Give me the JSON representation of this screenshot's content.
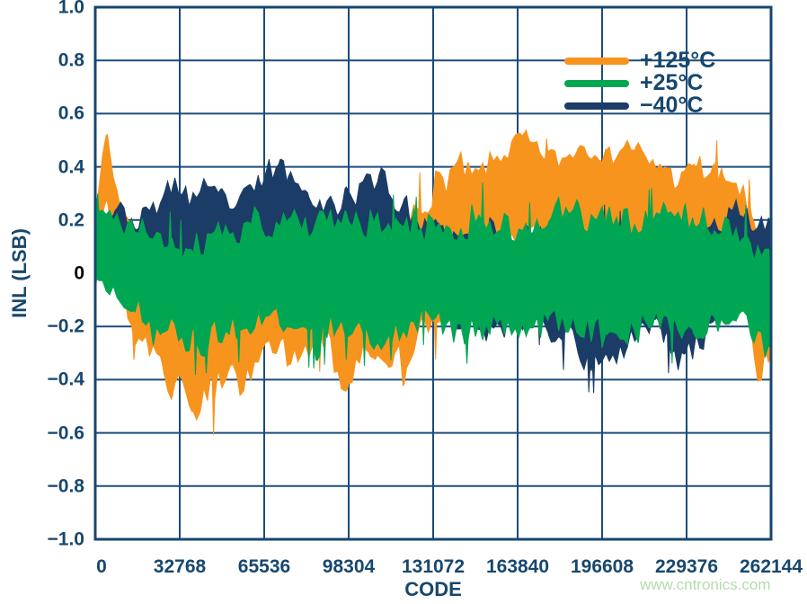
{
  "colors": {
    "text": "#17476E",
    "grid": "#1B4C7C",
    "frame": "#17466F",
    "zero_tick": "#000000",
    "background": "#FFFFFF",
    "watermark": "#B4DBAC"
  },
  "watermark": {
    "text": "www.cntronics.com"
  },
  "chart_data": {
    "type": "line",
    "title": "",
    "xlabel": "CODE",
    "ylabel": "INL (LSB)",
    "xlim": [
      0,
      262144
    ],
    "ylim": [
      -1.0,
      1.0
    ],
    "grid": true,
    "legend_position": "top-right-inside",
    "x_ticks": [
      0,
      32768,
      65536,
      98304,
      131072,
      163840,
      196608,
      229376,
      262144
    ],
    "x_tick_labels": [
      "0",
      "32768",
      "65536",
      "98304",
      "131072",
      "163840",
      "196608",
      "229376",
      "262144"
    ],
    "y_ticks": [
      1.0,
      0.8,
      0.6,
      0.4,
      0.2,
      0,
      -0.2,
      -0.4,
      -0.6,
      -0.8,
      -1.0
    ],
    "y_tick_labels": [
      "1.0",
      "0.8",
      "0.6",
      "0.4",
      "0.2",
      "0",
      "−0.2",
      "−0.4",
      "−0.6",
      "−0.8",
      "−1.0"
    ],
    "note": "Dense noise-like INL traces for three temperatures; each series fills the band between its lower and upper envelope (values in LSB, estimated from plot).",
    "series": [
      {
        "id": "p125",
        "name": "+125°C",
        "color": "#F7941E",
        "z": 1,
        "seed": 7,
        "envelope": {
          "x": [
            0,
            2500,
            4500,
            7000,
            11000,
            17000,
            26000,
            34000,
            42000,
            50000,
            58000,
            68000,
            80000,
            90000,
            98000,
            106000,
            114000,
            122000,
            130000,
            140000,
            152000,
            164000,
            176000,
            188000,
            200000,
            212000,
            224000,
            236000,
            246000,
            252000,
            257000,
            262144
          ],
          "upper": [
            0.3,
            0.46,
            0.6,
            0.44,
            0.28,
            0.22,
            0.18,
            0.16,
            0.18,
            0.16,
            0.2,
            0.22,
            0.24,
            0.3,
            0.34,
            0.44,
            0.36,
            0.32,
            0.44,
            0.5,
            0.55,
            0.58,
            0.5,
            0.57,
            0.52,
            0.57,
            0.5,
            0.55,
            0.45,
            0.38,
            0.3,
            0.24
          ],
          "lower": [
            0.05,
            0.16,
            0.22,
            0.02,
            -0.18,
            -0.4,
            -0.52,
            -0.6,
            -0.66,
            -0.55,
            -0.5,
            -0.42,
            -0.48,
            -0.42,
            -0.56,
            -0.46,
            -0.52,
            -0.44,
            -0.36,
            -0.18,
            -0.02,
            0.04,
            0.06,
            0.04,
            0.02,
            0.0,
            -0.06,
            -0.12,
            -0.2,
            -0.32,
            -0.56,
            -0.4
          ]
        }
      },
      {
        "id": "p25",
        "name": "+25°C",
        "color": "#00A651",
        "z": 3,
        "seed": 41,
        "envelope": {
          "x": [
            0,
            12000,
            24000,
            36000,
            48000,
            60000,
            72000,
            84000,
            96000,
            108000,
            120000,
            132000,
            144000,
            156000,
            168000,
            180000,
            192000,
            204000,
            216000,
            228000,
            240000,
            250000,
            256000,
            262144
          ],
          "upper": [
            0.3,
            0.28,
            0.24,
            0.22,
            0.28,
            0.3,
            0.34,
            0.36,
            0.3,
            0.32,
            0.28,
            0.3,
            0.32,
            0.36,
            0.3,
            0.38,
            0.32,
            0.3,
            0.32,
            0.38,
            0.32,
            0.28,
            0.22,
            0.18
          ],
          "lower": [
            -0.12,
            -0.22,
            -0.32,
            -0.4,
            -0.36,
            -0.32,
            -0.3,
            -0.36,
            -0.32,
            -0.36,
            -0.3,
            -0.32,
            -0.34,
            -0.36,
            -0.3,
            -0.34,
            -0.36,
            -0.34,
            -0.3,
            -0.36,
            -0.34,
            -0.3,
            -0.34,
            -0.4
          ]
        }
      },
      {
        "id": "m40",
        "name": "−40°C",
        "color": "#1B3C66",
        "z": 2,
        "seed": 23,
        "envelope": {
          "x": [
            0,
            8000,
            16000,
            24000,
            30000,
            36000,
            42000,
            48000,
            54000,
            60000,
            66000,
            72000,
            78000,
            86000,
            94000,
            102000,
            110000,
            118000,
            126000,
            136000,
            148000,
            158000,
            168000,
            178000,
            188000,
            198000,
            208000,
            216000,
            224000,
            232000,
            240000,
            250000,
            262144
          ],
          "upper": [
            0.28,
            0.32,
            0.26,
            0.35,
            0.44,
            0.4,
            0.44,
            0.38,
            0.34,
            0.4,
            0.52,
            0.58,
            0.46,
            0.4,
            0.36,
            0.44,
            0.5,
            0.36,
            0.3,
            0.26,
            0.22,
            0.26,
            0.24,
            0.26,
            0.22,
            0.26,
            0.22,
            0.26,
            0.3,
            0.24,
            0.26,
            0.34,
            0.28
          ],
          "lower": [
            -0.06,
            -0.14,
            -0.1,
            -0.14,
            -0.1,
            -0.16,
            -0.12,
            -0.16,
            -0.1,
            -0.14,
            -0.1,
            -0.16,
            -0.12,
            -0.16,
            -0.12,
            -0.16,
            -0.14,
            -0.18,
            -0.16,
            -0.2,
            -0.28,
            -0.32,
            -0.26,
            -0.32,
            -0.44,
            -0.46,
            -0.32,
            -0.28,
            -0.4,
            -0.44,
            -0.3,
            -0.22,
            -0.16
          ]
        }
      }
    ]
  }
}
